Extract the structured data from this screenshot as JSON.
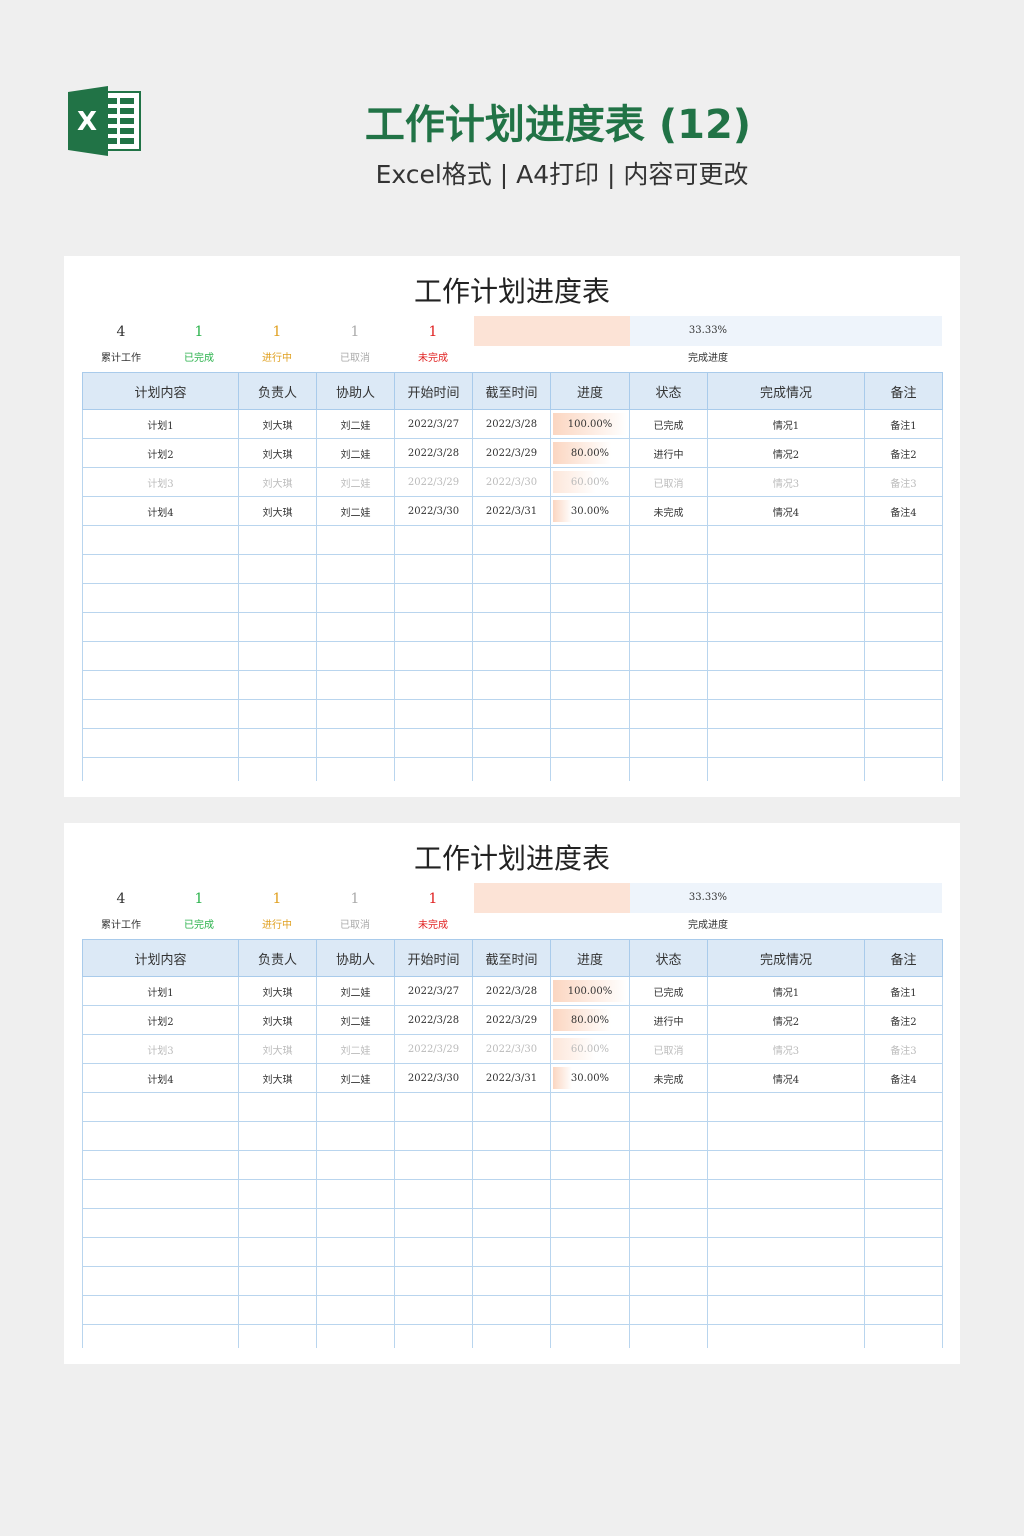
{
  "header": {
    "title": "工作计划进度表 (12)",
    "subtitle": "Excel格式 | A4打印 | 内容可更改",
    "logo": "excel-logo"
  },
  "colors": {
    "brand": "#217346",
    "done": "#2bb24c",
    "in_progress": "#e0a020",
    "cancelled": "#aaaaaa",
    "unfinished": "#e02020",
    "header_bg": "#dce9f6",
    "progress_fill": "#fce3d6"
  },
  "sheet": {
    "title": "工作计划进度表",
    "stats": [
      {
        "value": "4",
        "label": "累计工作",
        "color": "#333333"
      },
      {
        "value": "1",
        "label": "已完成",
        "color": "#2bb24c"
      },
      {
        "value": "1",
        "label": "进行中",
        "color": "#e0a020"
      },
      {
        "value": "1",
        "label": "已取消",
        "color": "#aaaaaa"
      },
      {
        "value": "1",
        "label": "未完成",
        "color": "#e02020"
      }
    ],
    "completion": {
      "percent": 33.33,
      "text": "33.33%",
      "label": "完成进度"
    },
    "columns": [
      "计划内容",
      "负责人",
      "协助人",
      "开始时间",
      "截至时间",
      "进度",
      "状态",
      "完成情况",
      "备注"
    ],
    "rows": [
      {
        "cells": [
          "计划1",
          "刘大琪",
          "刘二娃",
          "2022/3/27",
          "2022/3/28",
          "100.00%",
          "已完成",
          "情况1",
          "备注1"
        ],
        "progress": 100,
        "dim": false
      },
      {
        "cells": [
          "计划2",
          "刘大琪",
          "刘二娃",
          "2022/3/28",
          "2022/3/29",
          "80.00%",
          "进行中",
          "情况2",
          "备注2"
        ],
        "progress": 80,
        "dim": false
      },
      {
        "cells": [
          "计划3",
          "刘大琪",
          "刘二娃",
          "2022/3/29",
          "2022/3/30",
          "60.00%",
          "已取消",
          "情况3",
          "备注3"
        ],
        "progress": 60,
        "dim": true
      },
      {
        "cells": [
          "计划4",
          "刘大琪",
          "刘二娃",
          "2022/3/30",
          "2022/3/31",
          "30.00%",
          "未完成",
          "情况4",
          "备注4"
        ],
        "progress": 30,
        "dim": false
      }
    ],
    "empty_rows": 9
  }
}
